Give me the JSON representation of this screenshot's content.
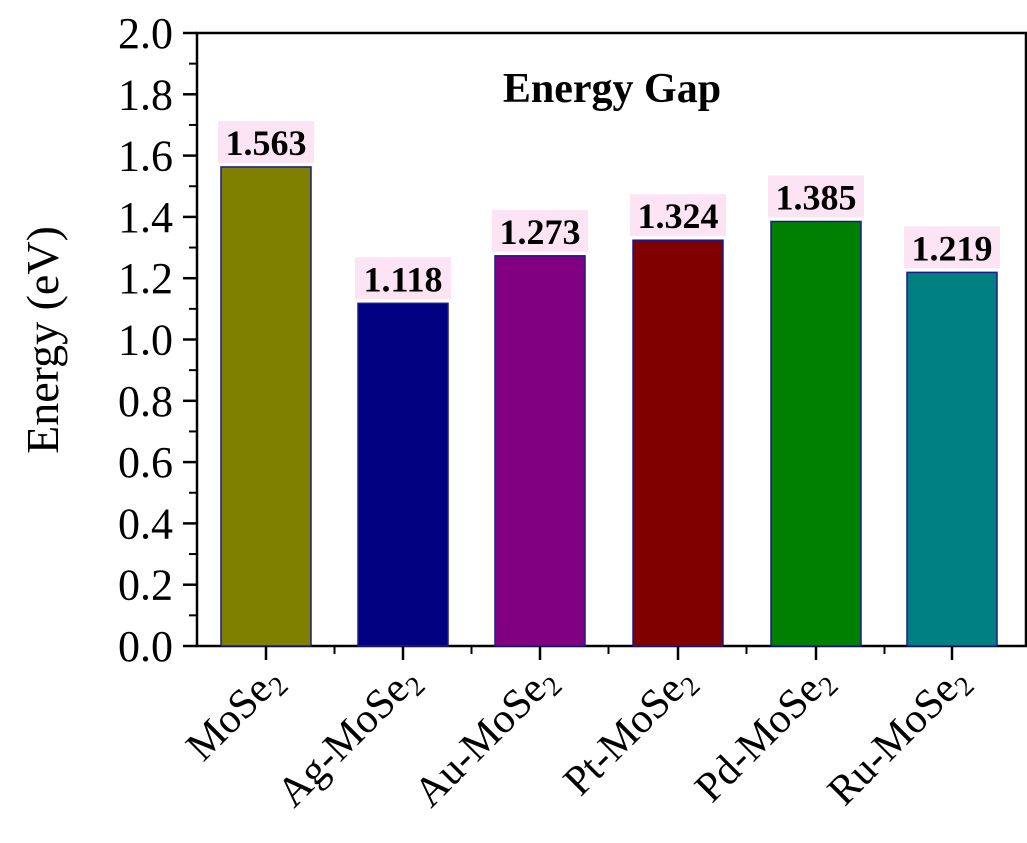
{
  "chart_data": {
    "type": "bar",
    "title": "Energy Gap",
    "xlabel": "",
    "ylabel": "Energy (eV)",
    "ylim": [
      0,
      2.0
    ],
    "yticks": [
      "0.0",
      "0.2",
      "0.4",
      "0.6",
      "0.8",
      "1.0",
      "1.2",
      "1.4",
      "1.6",
      "1.8",
      "2.0"
    ],
    "categories": [
      {
        "prefix": "",
        "base": "MoSe",
        "sub": "2"
      },
      {
        "prefix": "Ag-",
        "base": "MoSe",
        "sub": "2"
      },
      {
        "prefix": "Au-",
        "base": "MoSe",
        "sub": "2"
      },
      {
        "prefix": "Pt-",
        "base": "MoSe",
        "sub": "2"
      },
      {
        "prefix": "Pd-",
        "base": "MoSe",
        "sub": "2"
      },
      {
        "prefix": "Ru-",
        "base": "MoSe",
        "sub": "2"
      }
    ],
    "values": [
      1.563,
      1.118,
      1.273,
      1.324,
      1.385,
      1.219
    ],
    "value_labels": [
      "1.563",
      "1.118",
      "1.273",
      "1.324",
      "1.385",
      "1.219"
    ],
    "bar_colors": [
      "#808000",
      "#000080",
      "#800080",
      "#800000",
      "#008000",
      "#008080"
    ],
    "label_background": "#fce4f4",
    "grid": false,
    "legend": "none"
  }
}
